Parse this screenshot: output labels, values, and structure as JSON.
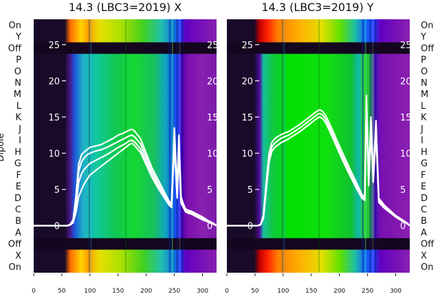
{
  "chart_data": [
    {
      "type": "heatmap",
      "title": "14.3 (LBC3=2019) X",
      "ylabel": "Dipole",
      "x_ticks": [
        0,
        50,
        100,
        150,
        200,
        250,
        300
      ],
      "xlim": [
        0,
        325
      ],
      "row_labels": [
        "On",
        "Y",
        "Off",
        "P",
        "O",
        "N",
        "M",
        "L",
        "K",
        "J",
        "I",
        "H",
        "G",
        "F",
        "E",
        "D",
        "C",
        "B",
        "A",
        "Off",
        "X",
        "On"
      ],
      "overlay_ticks": [
        0,
        5,
        10,
        15,
        20,
        25
      ],
      "overlay_ylim": [
        -6.5,
        28.5
      ],
      "overlay_traces": [
        {
          "x": [
            0,
            60,
            65,
            70,
            75,
            80,
            85,
            90,
            95,
            100,
            110,
            120,
            130,
            140,
            150,
            160,
            170,
            175,
            180,
            190,
            200,
            210,
            220,
            230,
            240,
            245,
            250,
            255,
            258,
            262,
            266,
            270,
            275,
            280,
            290,
            300,
            310,
            320,
            325
          ],
          "y": [
            0,
            0,
            0.2,
            0.8,
            4,
            8.5,
            9.8,
            10.2,
            10.5,
            10.8,
            11,
            11.2,
            11.6,
            12,
            12.5,
            12.8,
            13.2,
            13.3,
            13,
            12,
            10,
            8,
            6.5,
            5,
            3.5,
            3,
            13.5,
            5,
            12.5,
            4,
            3,
            2.3,
            2.1,
            2,
            1.6,
            1.2,
            0.7,
            0.3,
            0
          ]
        },
        {
          "x": [
            0,
            60,
            65,
            70,
            75,
            80,
            85,
            90,
            95,
            100,
            110,
            120,
            130,
            140,
            150,
            160,
            170,
            175,
            180,
            190,
            200,
            210,
            220,
            230,
            240,
            245,
            250,
            255,
            258,
            262,
            266,
            270,
            275,
            280,
            290,
            300,
            310,
            320,
            325
          ],
          "y": [
            0,
            0,
            0.1,
            0.6,
            3.5,
            7.5,
            8.8,
            9.4,
            9.8,
            10,
            10.3,
            10.5,
            10.8,
            11.2,
            11.6,
            12,
            12.4,
            12.5,
            12.2,
            11.3,
            9.4,
            7.5,
            6,
            4.6,
            3.2,
            2.8,
            12.5,
            4.5,
            11.5,
            3.6,
            2.8,
            2.1,
            1.9,
            1.8,
            1.4,
            1,
            0.6,
            0.2,
            0
          ]
        },
        {
          "x": [
            0,
            60,
            65,
            70,
            75,
            80,
            85,
            90,
            95,
            100,
            110,
            120,
            130,
            140,
            150,
            160,
            170,
            175,
            180,
            190,
            200,
            210,
            220,
            230,
            240,
            245,
            250,
            255,
            258,
            262,
            266,
            270,
            275,
            280,
            290,
            300,
            310,
            320,
            325
          ],
          "y": [
            0,
            0,
            0.1,
            0.5,
            2.8,
            6,
            7.2,
            7.8,
            8.2,
            8.6,
            9,
            9.4,
            9.8,
            10.3,
            10.8,
            11.2,
            11.7,
            11.8,
            11.5,
            10.6,
            8.8,
            7,
            5.6,
            4.3,
            3,
            2.6,
            11.5,
            4,
            10.5,
            3.3,
            2.6,
            2,
            1.8,
            1.7,
            1.3,
            0.9,
            0.5,
            0.2,
            0
          ]
        },
        {
          "x": [
            0,
            60,
            65,
            70,
            75,
            80,
            85,
            90,
            95,
            100,
            110,
            120,
            130,
            140,
            150,
            160,
            170,
            175,
            180,
            190,
            200,
            210,
            220,
            230,
            240,
            245,
            250,
            255,
            258,
            262,
            266,
            270,
            275,
            280,
            290,
            300,
            310,
            320,
            325
          ],
          "y": [
            0,
            0,
            0.1,
            0.4,
            1.8,
            4,
            5,
            5.8,
            6.4,
            7,
            7.6,
            8.2,
            8.8,
            9.4,
            10,
            10.6,
            11.2,
            11.4,
            11,
            10.1,
            8.4,
            6.7,
            5.3,
            4.1,
            2.9,
            2.5,
            11,
            3.8,
            10,
            3.1,
            2.5,
            1.9,
            1.7,
            1.6,
            1.2,
            0.8,
            0.5,
            0.2,
            0
          ]
        }
      ]
    },
    {
      "type": "heatmap",
      "title": "14.3 (LBC3=2019) Y",
      "x_ticks": [
        0,
        50,
        100,
        150,
        200,
        250,
        300
      ],
      "xlim": [
        0,
        325
      ],
      "row_labels": [
        "On",
        "Y",
        "Off",
        "P",
        "O",
        "N",
        "M",
        "L",
        "K",
        "J",
        "I",
        "H",
        "G",
        "F",
        "E",
        "D",
        "C",
        "B",
        "A",
        "Off",
        "X",
        "On"
      ],
      "overlay_ticks": [
        0,
        5,
        10,
        15,
        20,
        25
      ],
      "overlay_ylim": [
        -6.5,
        28.5
      ],
      "overlay_traces": [
        {
          "x": [
            0,
            55,
            60,
            65,
            70,
            75,
            80,
            85,
            90,
            95,
            100,
            110,
            120,
            130,
            140,
            150,
            160,
            165,
            170,
            175,
            180,
            190,
            200,
            210,
            220,
            230,
            240,
            245,
            248,
            252,
            256,
            260,
            265,
            270,
            280,
            290,
            300,
            310,
            320,
            325
          ],
          "y": [
            0,
            0,
            0.2,
            1.5,
            6,
            10,
            11.5,
            12,
            12.3,
            12.5,
            12.7,
            13,
            13.5,
            14,
            14.6,
            15.2,
            15.8,
            16,
            15.8,
            15.3,
            14.5,
            12.8,
            11,
            9.3,
            7.6,
            6,
            4.3,
            4,
            18,
            6.5,
            15,
            7,
            14.5,
            3.8,
            2.8,
            2.1,
            1.4,
            0.9,
            0.4,
            0
          ]
        },
        {
          "x": [
            0,
            55,
            60,
            65,
            70,
            75,
            80,
            85,
            90,
            95,
            100,
            110,
            120,
            130,
            140,
            150,
            160,
            165,
            170,
            175,
            180,
            190,
            200,
            210,
            220,
            230,
            240,
            245,
            248,
            252,
            256,
            260,
            265,
            270,
            280,
            290,
            300,
            310,
            320,
            325
          ],
          "y": [
            0,
            0,
            0.2,
            1.2,
            5.5,
            9.4,
            10.9,
            11.4,
            11.7,
            12,
            12.2,
            12.5,
            13,
            13.5,
            14.1,
            14.7,
            15.3,
            15.5,
            15.3,
            14.8,
            14,
            12.3,
            10.5,
            8.8,
            7.1,
            5.6,
            4,
            3.7,
            17,
            6,
            14,
            6.5,
            13.5,
            3.5,
            2.6,
            1.9,
            1.3,
            0.8,
            0.3,
            0
          ]
        },
        {
          "x": [
            0,
            55,
            60,
            65,
            70,
            75,
            80,
            85,
            90,
            95,
            100,
            110,
            120,
            130,
            140,
            150,
            160,
            165,
            170,
            175,
            180,
            190,
            200,
            210,
            220,
            230,
            240,
            245,
            248,
            252,
            256,
            260,
            265,
            270,
            280,
            290,
            300,
            310,
            320,
            325
          ],
          "y": [
            0,
            0,
            0.1,
            1,
            5,
            8.8,
            10.3,
            10.8,
            11.1,
            11.4,
            11.6,
            12,
            12.5,
            13,
            13.6,
            14.2,
            14.8,
            15,
            14.8,
            14.3,
            13.5,
            11.8,
            10,
            8.3,
            6.7,
            5.2,
            3.8,
            3.5,
            16,
            5.5,
            13,
            6,
            12.5,
            3.2,
            2.4,
            1.8,
            1.2,
            0.7,
            0.3,
            0
          ]
        }
      ]
    }
  ]
}
